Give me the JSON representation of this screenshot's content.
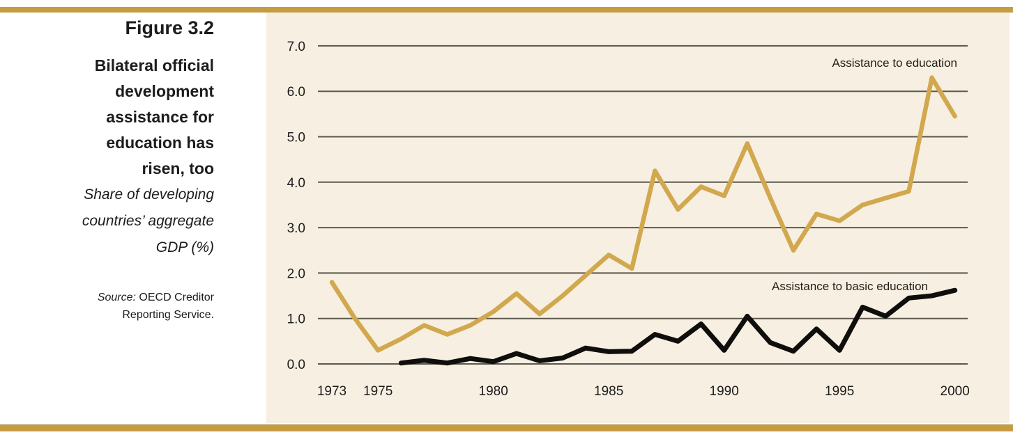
{
  "figure": {
    "label": "Figure 3.2",
    "title_lines": [
      "Bilateral official",
      "development",
      "assistance for",
      "education has",
      "risen, too"
    ],
    "subtitle_lines": [
      "Share of developing",
      "countries’ aggregate",
      "GDP (%)"
    ],
    "source": {
      "label": "Source:",
      "line1": "OECD Creditor",
      "line2": "Reporting Service."
    }
  },
  "chart_data": {
    "type": "line",
    "title": "Bilateral official development assistance for education has risen, too",
    "ylabel": "Share of developing countries' aggregate GDP (%)",
    "xlabel": "",
    "xlim": [
      1973,
      2000
    ],
    "ylim": [
      0.0,
      7.0
    ],
    "grid": true,
    "legend_position": "labels-next-to-lines",
    "y_ticks": [
      "0.0",
      "1.0",
      "2.0",
      "3.0",
      "4.0",
      "5.0",
      "6.0",
      "7.0"
    ],
    "x_ticks": [
      "1973",
      "1975",
      "1980",
      "1985",
      "1990",
      "1995",
      "2000"
    ],
    "series": [
      {
        "name": "Assistance to education",
        "color": "#d2a84f",
        "x": [
          1973,
          1974,
          1975,
          1976,
          1977,
          1978,
          1979,
          1980,
          1981,
          1982,
          1983,
          1984,
          1985,
          1986,
          1987,
          1988,
          1989,
          1990,
          1991,
          1992,
          1993,
          1994,
          1995,
          1996,
          1997,
          1998,
          1999,
          2000
        ],
        "values": [
          1.8,
          1.0,
          0.3,
          0.55,
          0.85,
          0.65,
          0.85,
          1.15,
          1.55,
          1.1,
          1.5,
          1.95,
          2.4,
          2.1,
          4.25,
          3.4,
          3.9,
          3.7,
          4.85,
          3.65,
          2.5,
          3.3,
          3.15,
          3.5,
          3.65,
          3.8,
          6.3,
          5.45
        ]
      },
      {
        "name": "Assistance to basic education",
        "color": "#0f0e0c",
        "x": [
          1976,
          1977,
          1978,
          1979,
          1980,
          1981,
          1982,
          1983,
          1984,
          1985,
          1986,
          1987,
          1988,
          1989,
          1990,
          1991,
          1992,
          1993,
          1994,
          1995,
          1996,
          1997,
          1998,
          1999,
          2000
        ],
        "values": [
          0.02,
          0.08,
          0.02,
          0.12,
          0.05,
          0.23,
          0.07,
          0.13,
          0.35,
          0.27,
          0.28,
          0.65,
          0.5,
          0.88,
          0.3,
          1.05,
          0.47,
          0.28,
          0.77,
          0.3,
          1.25,
          1.05,
          1.45,
          1.5,
          1.62
        ]
      }
    ]
  },
  "colors": {
    "accent_bar": "#c59c42",
    "panel_background": "#f7f0e2",
    "gridline": "#5b574d",
    "text": "#1c1c1c"
  }
}
